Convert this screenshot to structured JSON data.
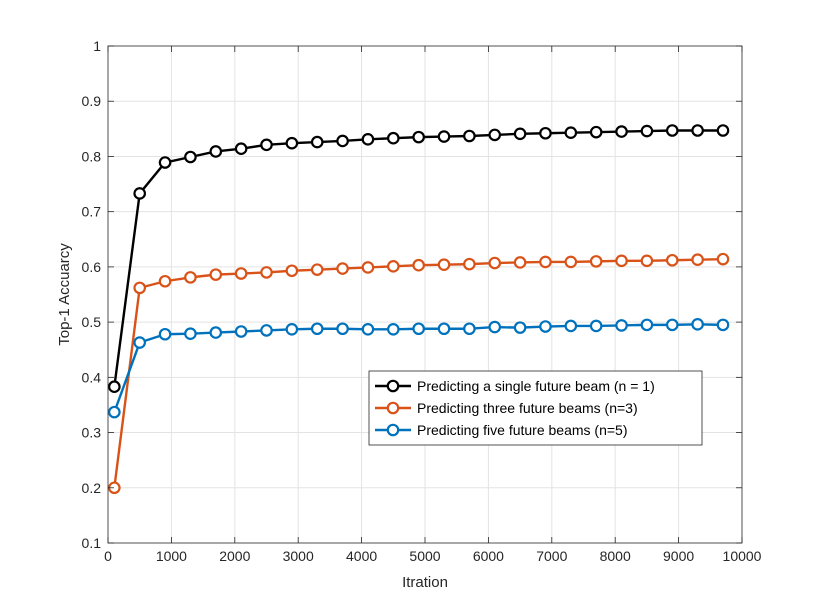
{
  "chart_data": {
    "type": "line",
    "xlabel": "Itration",
    "ylabel": "Top-1 Accuarcy",
    "xlim": [
      0,
      10000
    ],
    "ylim": [
      0.1,
      1
    ],
    "xticks": [
      0,
      1000,
      2000,
      3000,
      4000,
      5000,
      6000,
      7000,
      8000,
      9000,
      10000
    ],
    "yticks": [
      0.1,
      0.2,
      0.3,
      0.4,
      0.5,
      0.6,
      0.7,
      0.8,
      0.9,
      1
    ],
    "xtick_labels": [
      "0",
      "1000",
      "2000",
      "3000",
      "4000",
      "5000",
      "6000",
      "7000",
      "8000",
      "9000",
      "10000"
    ],
    "ytick_labels": [
      "0.1",
      "0.2",
      "0.3",
      "0.4",
      "0.5",
      "0.6",
      "0.7",
      "0.8",
      "0.9",
      "1"
    ],
    "grid": true,
    "legend_position": "center-right",
    "x": [
      100,
      500,
      900,
      1300,
      1700,
      2100,
      2500,
      2900,
      3300,
      3700,
      4100,
      4500,
      4900,
      5300,
      5700,
      6100,
      6500,
      6900,
      7300,
      7700,
      8100,
      8500,
      8900,
      9300,
      9700
    ],
    "series": [
      {
        "name": "Predicting a single future beam (n = 1)",
        "color": "#000000",
        "values": [
          0.383,
          0.733,
          0.789,
          0.799,
          0.809,
          0.814,
          0.821,
          0.824,
          0.826,
          0.828,
          0.831,
          0.833,
          0.835,
          0.836,
          0.837,
          0.839,
          0.841,
          0.842,
          0.843,
          0.844,
          0.845,
          0.846,
          0.847,
          0.847,
          0.847
        ]
      },
      {
        "name": "Predicting three future beams (n=3)",
        "color": "#D95319",
        "values": [
          0.2,
          0.562,
          0.574,
          0.581,
          0.586,
          0.588,
          0.59,
          0.593,
          0.595,
          0.597,
          0.599,
          0.601,
          0.603,
          0.604,
          0.605,
          0.607,
          0.608,
          0.609,
          0.609,
          0.61,
          0.611,
          0.611,
          0.612,
          0.613,
          0.614
        ]
      },
      {
        "name": "Predicting five future beams (n=5)",
        "color": "#0072BD",
        "values": [
          0.337,
          0.463,
          0.478,
          0.479,
          0.481,
          0.483,
          0.485,
          0.487,
          0.488,
          0.488,
          0.487,
          0.487,
          0.488,
          0.488,
          0.488,
          0.491,
          0.49,
          0.492,
          0.493,
          0.493,
          0.494,
          0.495,
          0.495,
          0.496,
          0.495
        ]
      }
    ]
  }
}
